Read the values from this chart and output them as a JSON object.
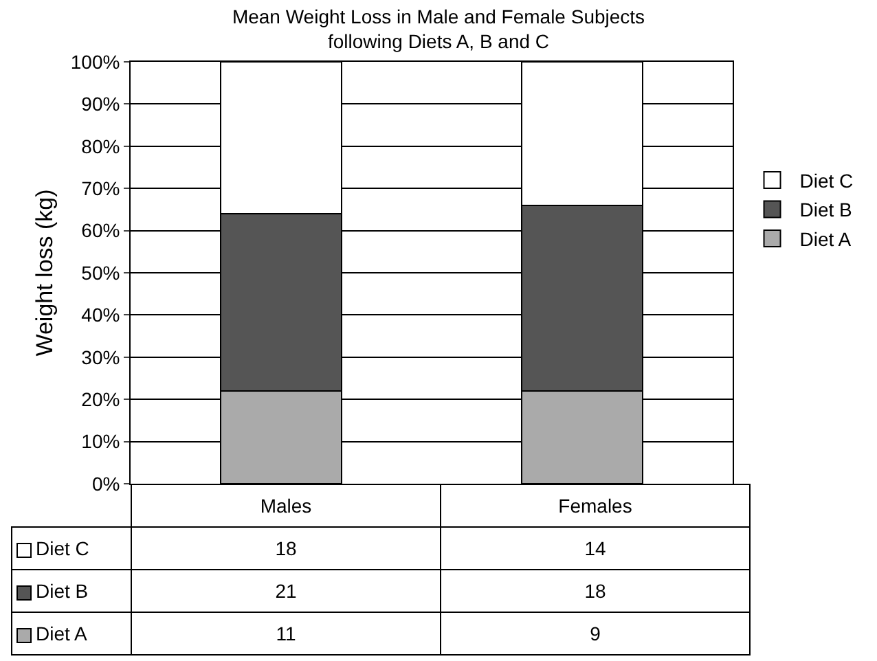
{
  "chart_data": {
    "type": "bar",
    "title": "Mean Weight Loss in Male and Female Subjects\nfollowing Diets A, B and C",
    "ylabel": "Weight loss (kg)",
    "categories": [
      "Males",
      "Females"
    ],
    "stacked": true,
    "series": [
      {
        "name": "Diet A",
        "color": "#aaaaaa",
        "values": [
          22,
          22
        ]
      },
      {
        "name": "Diet B",
        "color": "#555555",
        "values": [
          42,
          44
        ]
      },
      {
        "name": "Diet C",
        "color": "#ffffff",
        "values": [
          36,
          34
        ]
      }
    ],
    "ylim": [
      0,
      100
    ],
    "yticks": [
      {
        "value": 0,
        "label": "0%"
      },
      {
        "value": 10,
        "label": "10%"
      },
      {
        "value": 20,
        "label": "20%"
      },
      {
        "value": 30,
        "label": "30%"
      },
      {
        "value": 40,
        "label": "40%"
      },
      {
        "value": 50,
        "label": "50%"
      },
      {
        "value": 60,
        "label": "60%"
      },
      {
        "value": 70,
        "label": "70%"
      },
      {
        "value": 80,
        "label": "80%"
      },
      {
        "value": 90,
        "label": "90%"
      },
      {
        "value": 100,
        "label": "100%"
      }
    ],
    "annotations": [
      "18",
      "14",
      "21",
      "18",
      "11",
      "9"
    ],
    "grid": "y",
    "legend": "right"
  }
}
